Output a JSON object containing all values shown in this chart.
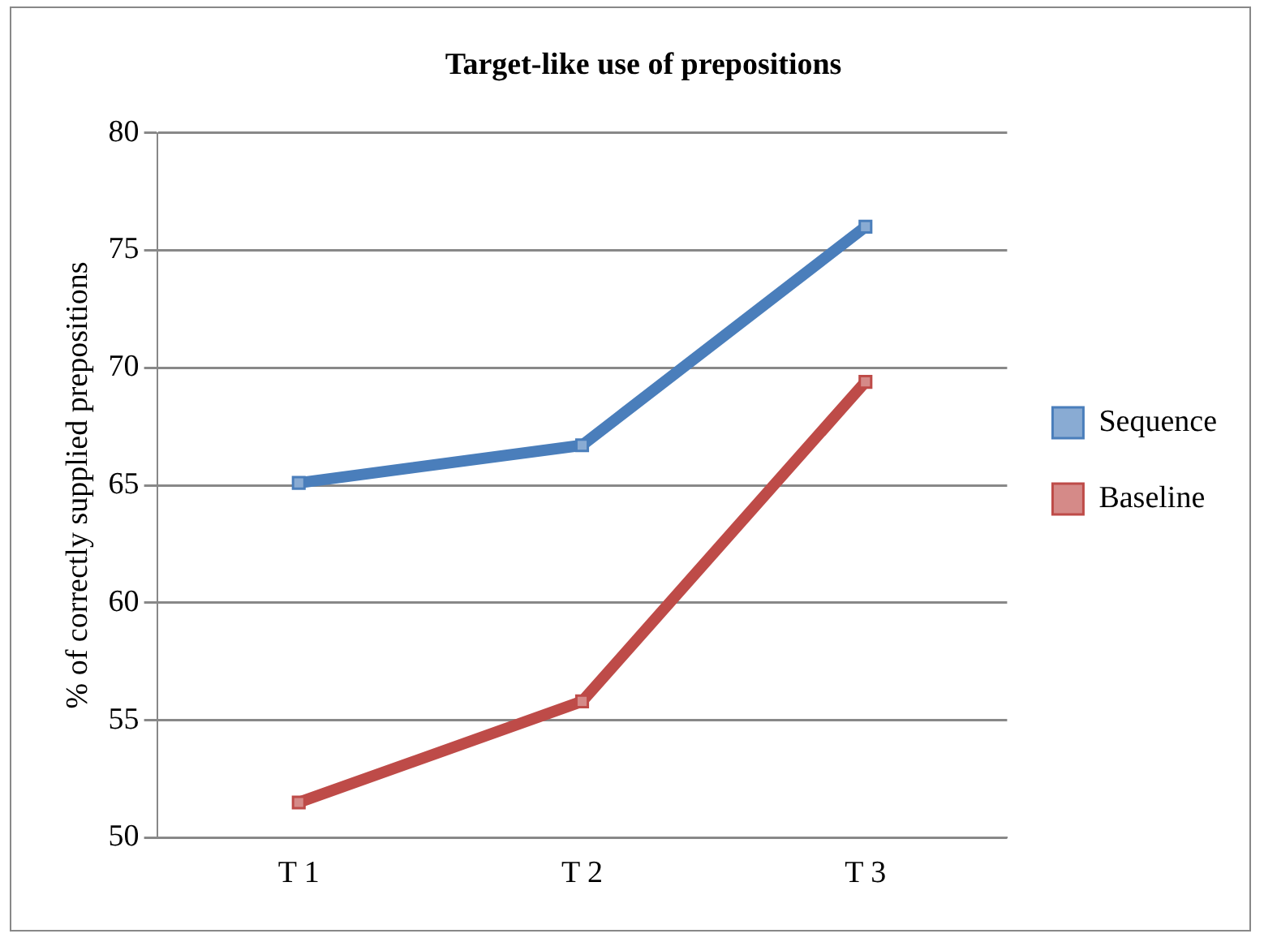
{
  "chart_data": {
    "type": "line",
    "title": "Target-like use of prepositions",
    "ylabel": "% of correctly supplied prepositions",
    "categories": [
      "T 1",
      "T 2",
      "T 3"
    ],
    "series": [
      {
        "name": "Sequence",
        "color": "#4a7ebb",
        "values": [
          65.1,
          66.7,
          76
        ]
      },
      {
        "name": "Baseline",
        "color": "#be4b48",
        "values": [
          51.5,
          55.8,
          69.4
        ]
      }
    ],
    "ylim": [
      50,
      80
    ],
    "yticks": [
      50,
      55,
      60,
      65,
      70,
      75,
      80
    ],
    "grid": "y",
    "legend": "right",
    "marker": "square",
    "line_style": "solid"
  }
}
